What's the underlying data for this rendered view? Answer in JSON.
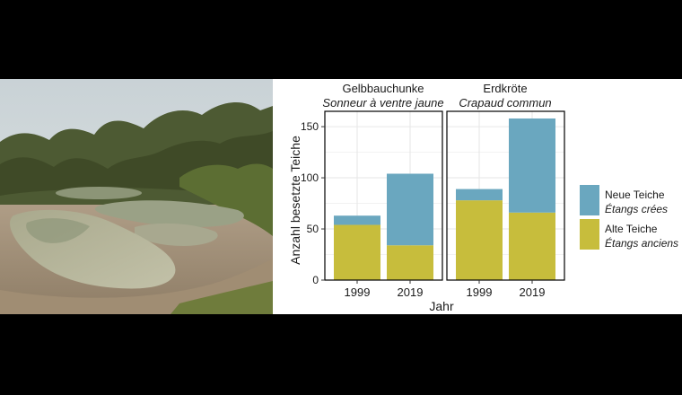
{
  "photo": {
    "description_icon": "pond-landscape-photo"
  },
  "colors": {
    "new_ponds": "#6aa7bf",
    "old_ponds": "#c7bd3c",
    "panel_border": "#000000",
    "grid": "#e6e6e6"
  },
  "legend": {
    "items": [
      {
        "line1": "Neue Teiche",
        "line2": "Étangs crées",
        "series": "new"
      },
      {
        "line1": "Alte Teiche",
        "line2": "Étangs anciens",
        "series": "old"
      }
    ]
  },
  "chart_data": {
    "type": "bar",
    "stacked": true,
    "xlabel": "Jahr",
    "ylabel": "Anzahl besetzte Teiche",
    "ylim": [
      0,
      165
    ],
    "yticks": [
      0,
      50,
      100,
      150
    ],
    "categories": [
      "1999",
      "2019"
    ],
    "panels": [
      {
        "title": "Gelbbauchunke",
        "subtitle": "Sonneur à ventre jaune",
        "series": [
          {
            "key": "old",
            "values": [
              54,
              34
            ]
          },
          {
            "key": "new",
            "values": [
              9,
              70
            ]
          }
        ]
      },
      {
        "title": "Erdkröte",
        "subtitle": "Crapaud commun",
        "series": [
          {
            "key": "old",
            "values": [
              78,
              66
            ]
          },
          {
            "key": "new",
            "values": [
              11,
              92
            ]
          }
        ]
      }
    ]
  }
}
